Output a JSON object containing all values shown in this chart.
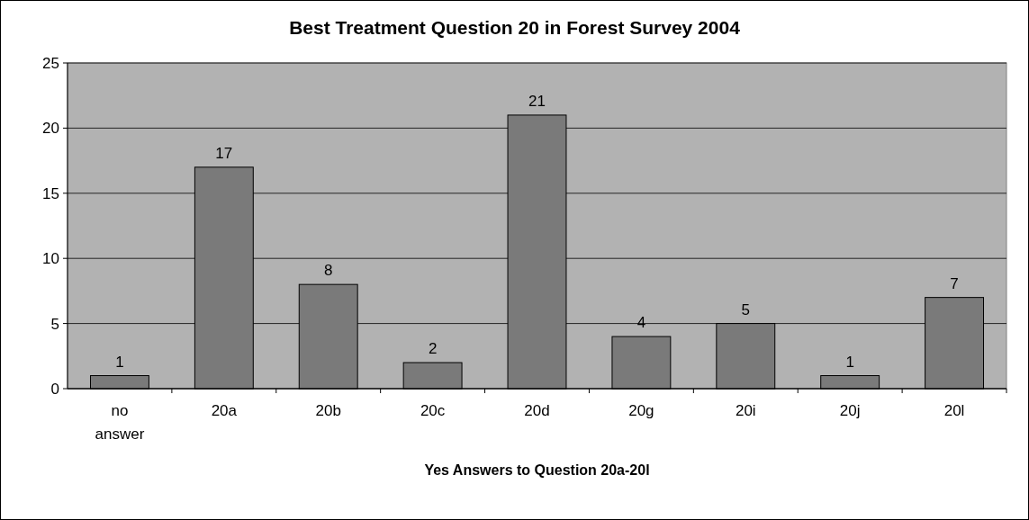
{
  "chart_data": {
    "type": "bar",
    "title": "Best Treatment Question 20 in Forest Survey 2004",
    "xlabel": "Yes Answers to Question 20a-20l",
    "categories": [
      "no answer",
      "20a",
      "20b",
      "20c",
      "20d",
      "20g",
      "20i",
      "20j",
      "20l"
    ],
    "values": [
      1,
      17,
      8,
      2,
      21,
      4,
      5,
      1,
      7
    ],
    "color": "#7a7a7a",
    "ylim": [
      0,
      25
    ],
    "yticks": [
      0,
      5,
      10,
      15,
      20,
      25
    ],
    "grid": "y",
    "data_labels": true
  }
}
